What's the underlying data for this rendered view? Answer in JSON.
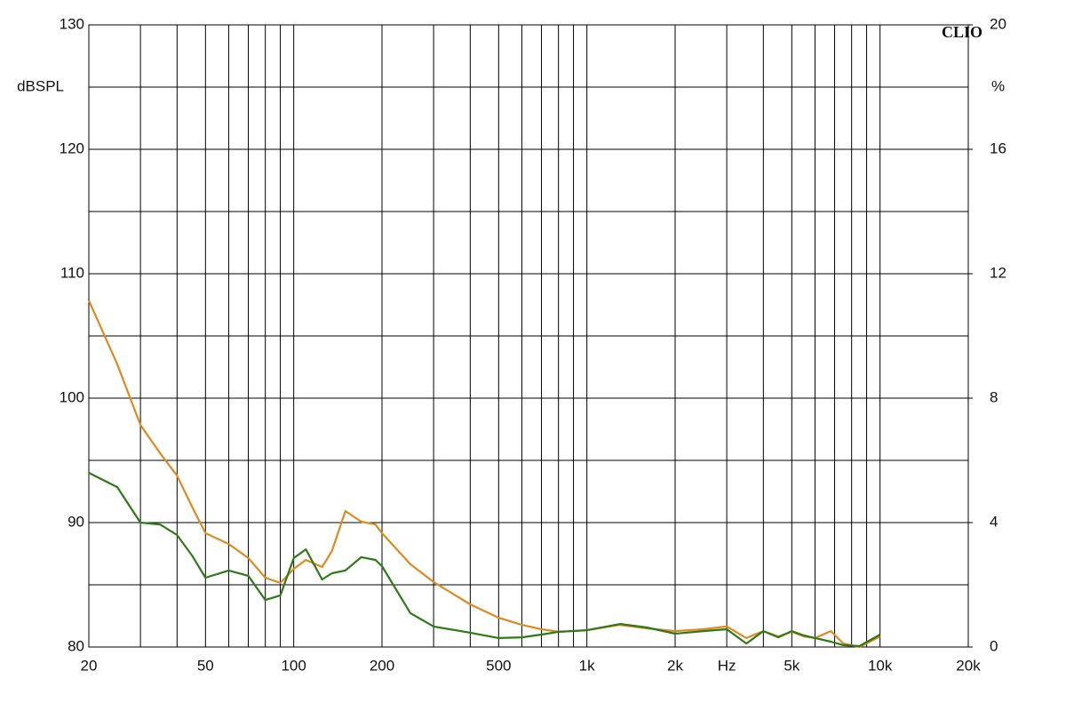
{
  "chart_data": {
    "type": "line",
    "y_label": "dBSPL",
    "y2_label": "%",
    "watermark": "CLIO",
    "log_x": true,
    "grid": true,
    "xlim": [
      20,
      20000
    ],
    "xticks": [
      20,
      50,
      100,
      200,
      500,
      {
        "value": 1000,
        "label": "1k"
      },
      {
        "value": 2000,
        "label": "2k"
      },
      {
        "value": 3000,
        "label": "Hz"
      },
      {
        "value": 5000,
        "label": "5k"
      },
      {
        "value": 10000,
        "label": "10k"
      },
      {
        "value": 20000,
        "label": "20k"
      }
    ],
    "xminor": [
      30,
      40,
      60,
      70,
      80,
      90,
      300,
      400,
      600,
      700,
      800,
      900,
      4000,
      6000,
      7000,
      8000,
      9000
    ],
    "ylim": [
      80,
      130
    ],
    "yticks": [
      80,
      90,
      100,
      110,
      120,
      130
    ],
    "yminor": [
      85,
      95,
      105,
      115,
      125
    ],
    "y2lim": [
      0,
      20
    ],
    "y2ticks": [
      0,
      4,
      8,
      12,
      16,
      20
    ],
    "x": [
      20,
      25,
      30,
      35,
      40,
      45,
      50,
      60,
      70,
      80,
      90,
      100,
      110,
      125,
      135,
      150,
      170,
      190,
      200,
      250,
      300,
      400,
      500,
      600,
      700,
      800,
      1000,
      1300,
      1600,
      2000,
      2500,
      3000,
      3500,
      4000,
      4500,
      5000,
      5500,
      6000,
      6800,
      7500,
      8500,
      10000
    ],
    "series": [
      {
        "color": "#e0891f",
        "axis": "y2",
        "values": [
          11.14,
          9.09,
          7.14,
          6.23,
          5.51,
          4.51,
          3.66,
          3.31,
          2.86,
          2.23,
          2.06,
          2.51,
          2.8,
          2.57,
          3.09,
          4.37,
          4.03,
          3.94,
          3.66,
          2.66,
          2.09,
          1.37,
          0.94,
          0.71,
          0.57,
          0.49,
          0.54,
          0.71,
          0.6,
          0.51,
          0.57,
          0.66,
          0.29,
          0.51,
          0.34,
          0.49,
          0.34,
          0.29,
          0.51,
          0.11,
          0,
          0.34
        ]
      },
      {
        "color": "#2d7a17",
        "axis": "y2",
        "values": [
          5.6,
          5.14,
          4.0,
          3.94,
          3.6,
          2.94,
          2.23,
          2.46,
          2.29,
          1.51,
          1.66,
          2.86,
          3.14,
          2.17,
          2.37,
          2.46,
          2.89,
          2.8,
          2.6,
          1.09,
          0.66,
          0.46,
          0.29,
          0.31,
          0.4,
          0.49,
          0.54,
          0.74,
          0.63,
          0.43,
          0.51,
          0.57,
          0.11,
          0.51,
          0.31,
          0.51,
          0.37,
          0.29,
          0.17,
          0.06,
          0.03,
          0.4
        ]
      }
    ]
  }
}
